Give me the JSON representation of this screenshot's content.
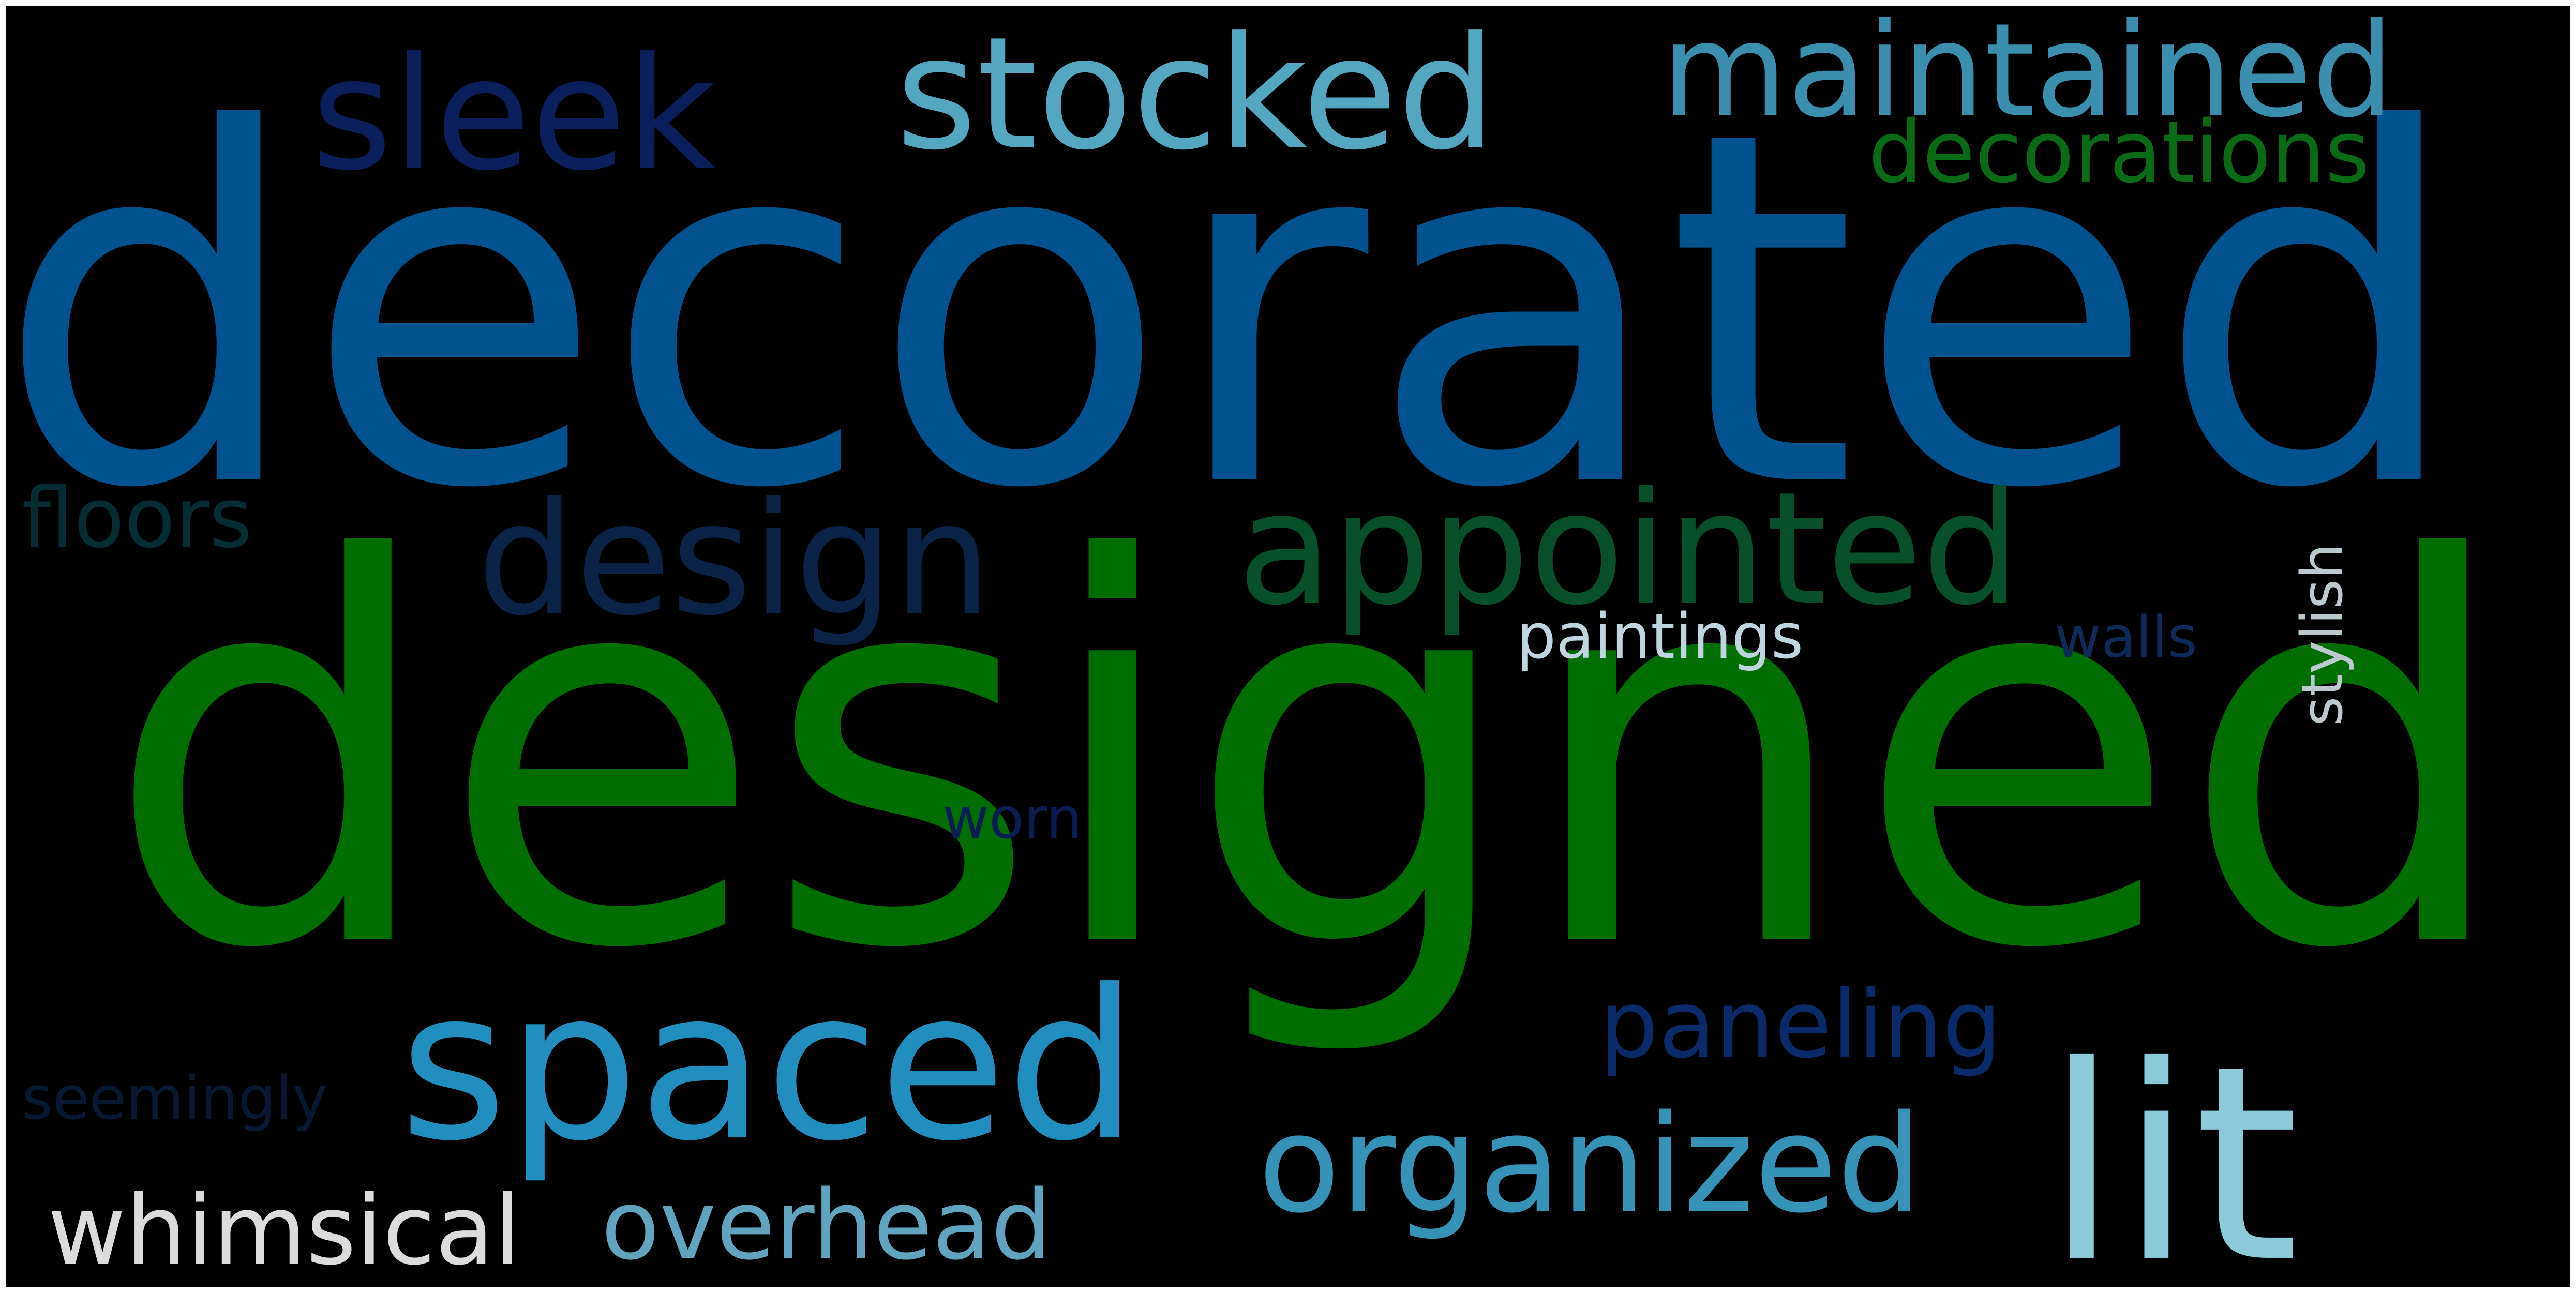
{
  "words": {
    "decorated": {
      "text": "decorated",
      "color": "#00538f"
    },
    "designed": {
      "text": "designed",
      "color": "#006e00"
    },
    "sleek": {
      "text": "sleek",
      "color": "#0a1f5c"
    },
    "stocked": {
      "text": "stocked",
      "color": "#54a7c1"
    },
    "maintained": {
      "text": "maintained",
      "color": "#3b8fae"
    },
    "decorations": {
      "text": "decorations",
      "color": "#0a6b16"
    },
    "design": {
      "text": "design",
      "color": "#0c2348"
    },
    "appointed": {
      "text": "appointed",
      "color": "#07502a"
    },
    "floors": {
      "text": "floors",
      "color": "#062c34"
    },
    "stylish": {
      "text": "stylish",
      "color": "#bcc9cf"
    },
    "paintings": {
      "text": "paintings",
      "color": "#bfd5df"
    },
    "walls": {
      "text": "walls",
      "color": "#0e2a5a"
    },
    "worn": {
      "text": "worn",
      "color": "#0b1d52"
    },
    "spaced": {
      "text": "spaced",
      "color": "#208fbf"
    },
    "paneling": {
      "text": "paneling",
      "color": "#0b2a6a"
    },
    "lit": {
      "text": "lit",
      "color": "#8ccad9"
    },
    "seemingly": {
      "text": "seemingly",
      "color": "#081a33"
    },
    "organized": {
      "text": "organized",
      "color": "#3593b7"
    },
    "whimsical": {
      "text": "whimsical",
      "color": "#dcdcdc"
    },
    "overhead": {
      "text": "overhead",
      "color": "#61a4c0"
    }
  }
}
